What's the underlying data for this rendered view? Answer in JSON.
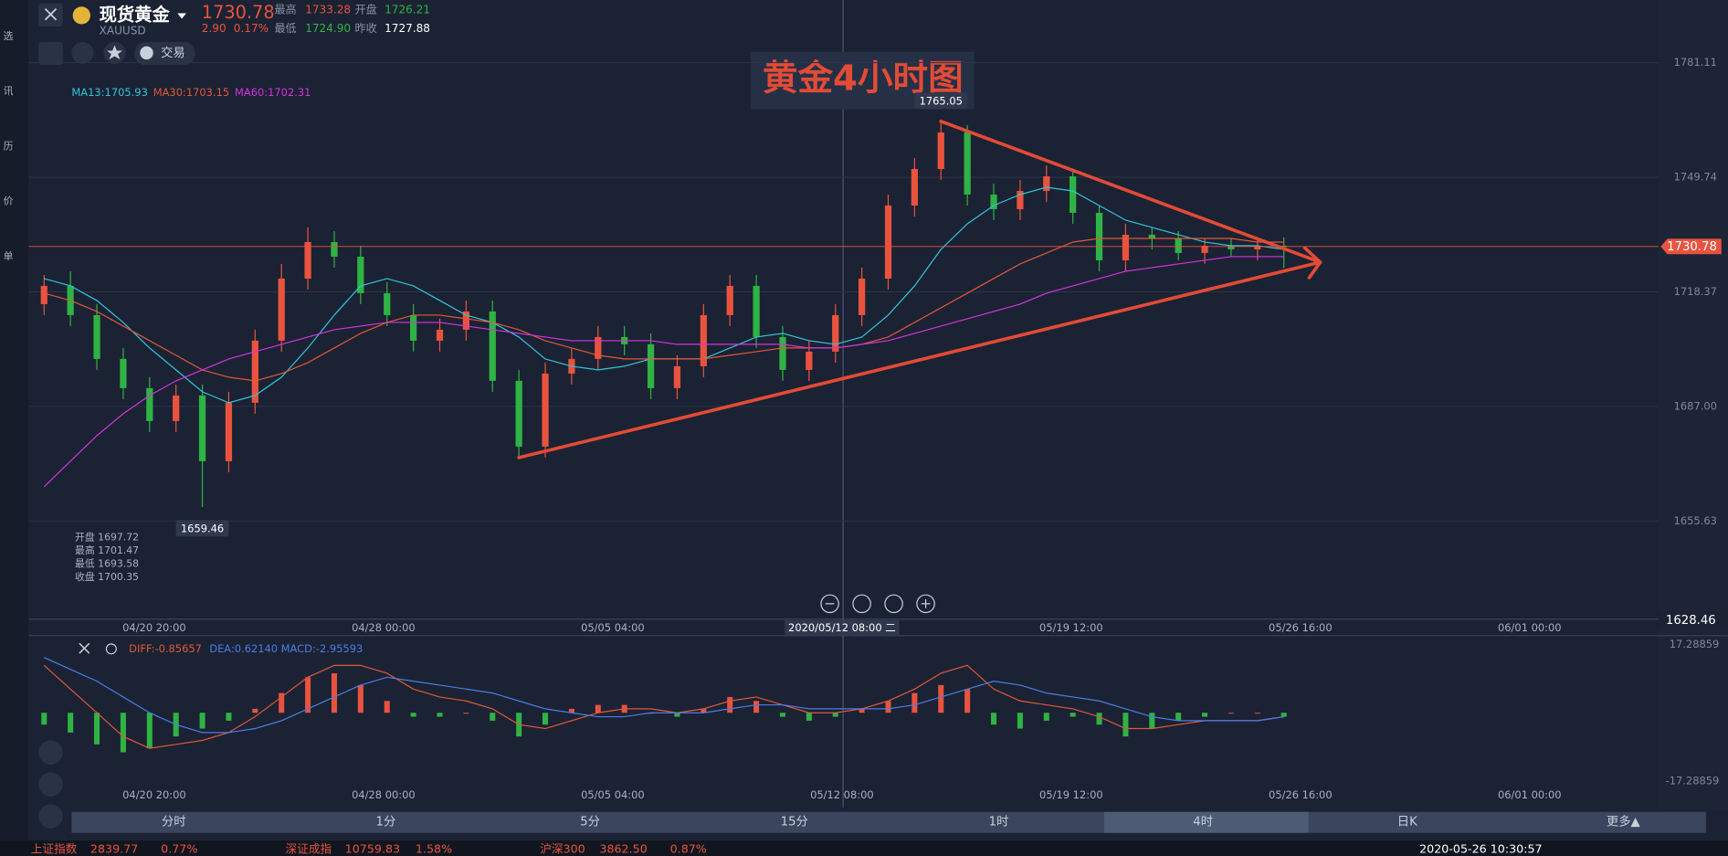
{
  "header": {
    "name": "现货黄金",
    "symbol": "XAUUSD",
    "price": "1730.78",
    "change": "2.90",
    "change_pct": "0.17%",
    "high_label": "最高",
    "high": "1733.28",
    "open_label": "开盘",
    "open": "1726.21",
    "low_label": "最低",
    "low": "1724.90",
    "prev_label": "昨收",
    "prev_close": "1727.88"
  },
  "toolbar": {
    "trade": "交易"
  },
  "sidebar": {
    "labels": [
      "选",
      "讯",
      "历",
      "价",
      "单"
    ]
  },
  "ma_legend": [
    {
      "text": "MA13:1705.93",
      "color": "#2fc6d9"
    },
    {
      "text": "MA30:1703.15",
      "color": "#e0583a"
    },
    {
      "text": "MA60:1702.31",
      "color": "#d633e0"
    }
  ],
  "info_box": [
    "开盘 1697.72",
    "最高 1701.47",
    "最低 1693.58",
    "收盘 1700.35"
  ],
  "crosshair_label": "2020/05/12 08:00 二",
  "macd_legend": [
    {
      "text": "DIFF:-0.85657",
      "color": "#e0583a"
    },
    {
      "text": "DEA:0.62140",
      "color": "#4a7de8"
    },
    {
      "text": "MACD:-2.95593",
      "color": "#4a7de8"
    }
  ],
  "periods": [
    "分时",
    "1分",
    "5分",
    "15分",
    "1时",
    "4时",
    "日K",
    "更多▲"
  ],
  "status_bar": {
    "items": [
      [
        "上证指数",
        "2839.77",
        "0.77%"
      ],
      [
        "深证成指",
        "10759.83",
        "1.58%"
      ],
      [
        "沪深300",
        "3862.50",
        "0.87%"
      ]
    ],
    "time": "2020-05-26 10:30:57"
  },
  "chart_data": {
    "type": "candlestick",
    "title": "黄金4小时图",
    "x_labels": [
      "04/20 20:00",
      "04/28 00:00",
      "05/05 04:00",
      "05/12 08:00",
      "05/19 12:00",
      "05/26 16:00",
      "06/01 00:00"
    ],
    "ylim": [
      1628.46,
      1792.24
    ],
    "yticks": [
      1781.11,
      1749.74,
      1718.37,
      {
        "value": 1687,
        "label": "1687.00"
      },
      1655.63,
      1628.46
    ],
    "up_color": "#e9533e",
    "down_color": "#2fb344",
    "open": [
      1715,
      1720,
      1712,
      1700,
      1692,
      1683,
      1690,
      1672,
      1688,
      1705,
      1722,
      1732,
      1728,
      1718,
      1712,
      1705,
      1708,
      1713,
      1694,
      1676,
      1696,
      1700,
      1706,
      1704,
      1692,
      1698,
      1712,
      1720,
      1706,
      1697,
      1702,
      1712,
      1722,
      1742,
      1752,
      1762,
      1745,
      1741,
      1746,
      1750,
      1740,
      1727,
      1734,
      1733,
      1729,
      1731,
      1730,
      1731
    ],
    "high": [
      1723,
      1724,
      1715,
      1703,
      1695,
      1693,
      1693,
      1691,
      1708,
      1726,
      1736,
      1735,
      1731,
      1721,
      1715,
      1711,
      1716,
      1716,
      1697,
      1699,
      1703,
      1709,
      1709,
      1707,
      1701,
      1715,
      1723,
      1723,
      1709,
      1705,
      1715,
      1725,
      1745,
      1755,
      1765.05,
      1764,
      1748,
      1749,
      1753,
      1752,
      1742,
      1737,
      1736,
      1735,
      1733,
      1733,
      1733,
      1733.28
    ],
    "low": [
      1712,
      1709,
      1697,
      1689,
      1680,
      1680,
      1659.46,
      1669,
      1685,
      1702,
      1719,
      1725,
      1715,
      1709,
      1702,
      1702,
      1705,
      1691,
      1673,
      1673,
      1693,
      1697,
      1701,
      1689,
      1689,
      1695,
      1709,
      1703,
      1694,
      1694,
      1699,
      1709,
      1719,
      1739,
      1749,
      1742,
      1738,
      1738,
      1743,
      1737,
      1724,
      1724,
      1730,
      1727,
      1726,
      1728,
      1727,
      1724.9
    ],
    "close": [
      1720,
      1712,
      1700,
      1692,
      1683,
      1690,
      1672,
      1688,
      1705,
      1722,
      1732,
      1728,
      1718,
      1712,
      1705,
      1708,
      1713,
      1694,
      1676,
      1696,
      1700,
      1706,
      1704,
      1692,
      1698,
      1712,
      1720,
      1706,
      1697,
      1702,
      1712,
      1722,
      1742,
      1752,
      1762,
      1745,
      1741,
      1746,
      1750,
      1740,
      1727,
      1734,
      1733,
      1729,
      1731,
      1730,
      1731,
      1730.78
    ],
    "series": [
      {
        "name": "MA13",
        "color": "#2fc6d9",
        "values": [
          1722,
          1720,
          1716,
          1710,
          1703,
          1697,
          1691,
          1688,
          1690,
          1695,
          1703,
          1712,
          1720,
          1722,
          1720,
          1716,
          1712,
          1710,
          1706,
          1700,
          1698,
          1697,
          1698,
          1700,
          1700,
          1700,
          1703,
          1706,
          1707,
          1705,
          1704,
          1706,
          1712,
          1720,
          1730,
          1737,
          1742,
          1745,
          1747,
          1746,
          1742,
          1738,
          1736,
          1734,
          1732,
          1731,
          1731,
          1730
        ]
      },
      {
        "name": "MA30",
        "color": "#e0583a",
        "values": [
          1718,
          1716,
          1713,
          1709,
          1705,
          1701,
          1697,
          1695,
          1694,
          1696,
          1699,
          1703,
          1707,
          1710,
          1712,
          1712,
          1711,
          1710,
          1708,
          1705,
          1703,
          1701,
          1700,
          1700,
          1700,
          1700,
          1701,
          1702,
          1703,
          1703,
          1703,
          1704,
          1706,
          1710,
          1714,
          1718,
          1722,
          1726,
          1729,
          1732,
          1733,
          1733,
          1733,
          1733,
          1733,
          1733,
          1732,
          1732
        ]
      },
      {
        "name": "MA60",
        "color": "#d633e0",
        "values": [
          1665,
          1672,
          1679,
          1685,
          1690,
          1694,
          1697,
          1700,
          1702,
          1704,
          1706,
          1708,
          1709,
          1710,
          1710,
          1710,
          1709,
          1708,
          1707,
          1706,
          1705,
          1705,
          1705,
          1705,
          1704,
          1704,
          1704,
          1704,
          1704,
          1703,
          1703,
          1704,
          1705,
          1707,
          1709,
          1711,
          1713,
          1715,
          1718,
          1720,
          1722,
          1724,
          1725,
          1726,
          1727,
          1728,
          1728,
          1728
        ]
      }
    ],
    "macd": {
      "ylim": [
        -17.28859,
        17.28859
      ],
      "yticks": [
        17.28859,
        -17.28859
      ],
      "hist": [
        -3,
        -5,
        -8,
        -10,
        -9,
        -6,
        -4,
        -2,
        1,
        5,
        9,
        10,
        7,
        3,
        -1,
        -1,
        0,
        -2,
        -6,
        -3,
        1,
        2,
        2,
        0,
        -1,
        1,
        4,
        3,
        -1,
        -2,
        -1,
        1,
        3,
        5,
        7,
        6,
        -3,
        -4,
        -2,
        -1,
        -3,
        -6,
        -4,
        -2,
        -1,
        0,
        0,
        -1
      ],
      "diff": [
        12,
        6,
        0,
        -6,
        -9,
        -8,
        -7,
        -5,
        -1,
        4,
        9,
        12,
        12,
        10,
        6,
        4,
        3,
        1,
        -3,
        -4,
        -2,
        0,
        1,
        1,
        0,
        1,
        3,
        4,
        2,
        0,
        0,
        1,
        3,
        6,
        10,
        12,
        6,
        3,
        2,
        1,
        -1,
        -4,
        -4,
        -3,
        -2,
        -2,
        -2,
        -1
      ],
      "dea": [
        14,
        11,
        8,
        4,
        0,
        -3,
        -5,
        -5,
        -4,
        -2,
        1,
        4,
        7,
        9,
        8,
        7,
        6,
        5,
        3,
        1,
        0,
        -1,
        -1,
        0,
        0,
        0,
        1,
        2,
        2,
        1,
        1,
        1,
        1,
        2,
        4,
        6,
        8,
        7,
        5,
        4,
        3,
        1,
        -1,
        -2,
        -2,
        -2,
        -2,
        -1
      ]
    }
  }
}
